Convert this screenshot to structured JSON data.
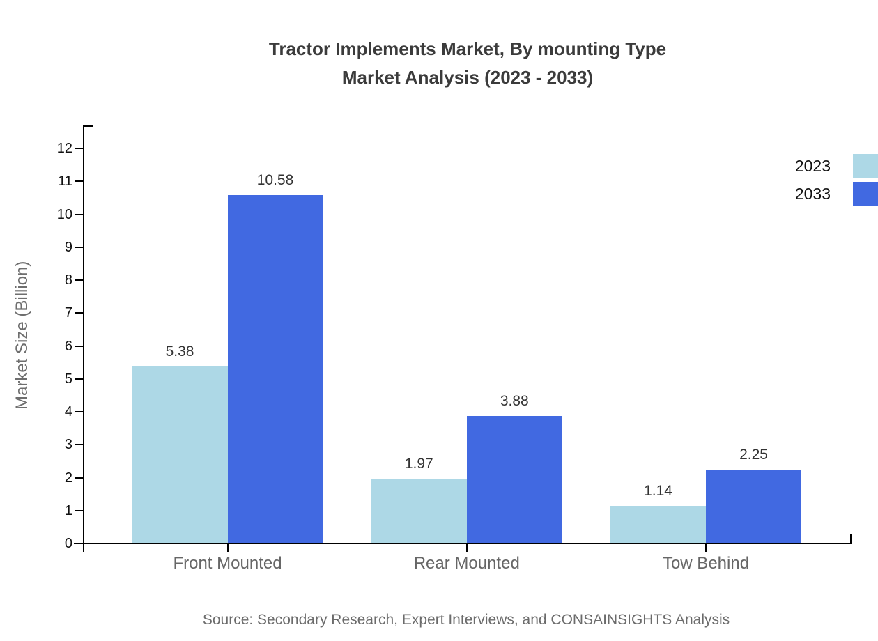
{
  "title": {
    "line1": "Tractor Implements Market, By mounting Type",
    "line2": "Market Analysis (2023 - 2033)"
  },
  "chart_data": {
    "type": "bar",
    "title": "Tractor Implements Market, By mounting Type Market Analysis (2023 - 2033)",
    "categories": [
      "Front Mounted",
      "Rear Mounted",
      "Tow Behind"
    ],
    "series": [
      {
        "name": "2023",
        "color": "#ADD8E6",
        "values": [
          5.38,
          1.97,
          1.14
        ]
      },
      {
        "name": "2033",
        "color": "#4169E1",
        "values": [
          10.58,
          3.88,
          2.25
        ]
      }
    ],
    "xlabel": "",
    "ylabel": "Market Size (Billion)",
    "ylim": [
      0,
      12.7
    ],
    "yticks": [
      0,
      1,
      2,
      3,
      4,
      5,
      6,
      7,
      8,
      9,
      10,
      11,
      12
    ],
    "grid": false,
    "legend_position": "top-right",
    "value_labels": true,
    "value_label_decimals": 2
  },
  "source": {
    "text": "Source: Secondary Research, Expert Interviews, and CONSAINSIGHTS Analysis"
  },
  "colors": {
    "background": "#ffffff",
    "axis": "#000000",
    "tick_label": "#111111",
    "category_label": "#666666",
    "ylabel": "#6e6e6e",
    "value_label": "#333333",
    "source": "#6b6b6b",
    "legend_text": "#111111"
  }
}
